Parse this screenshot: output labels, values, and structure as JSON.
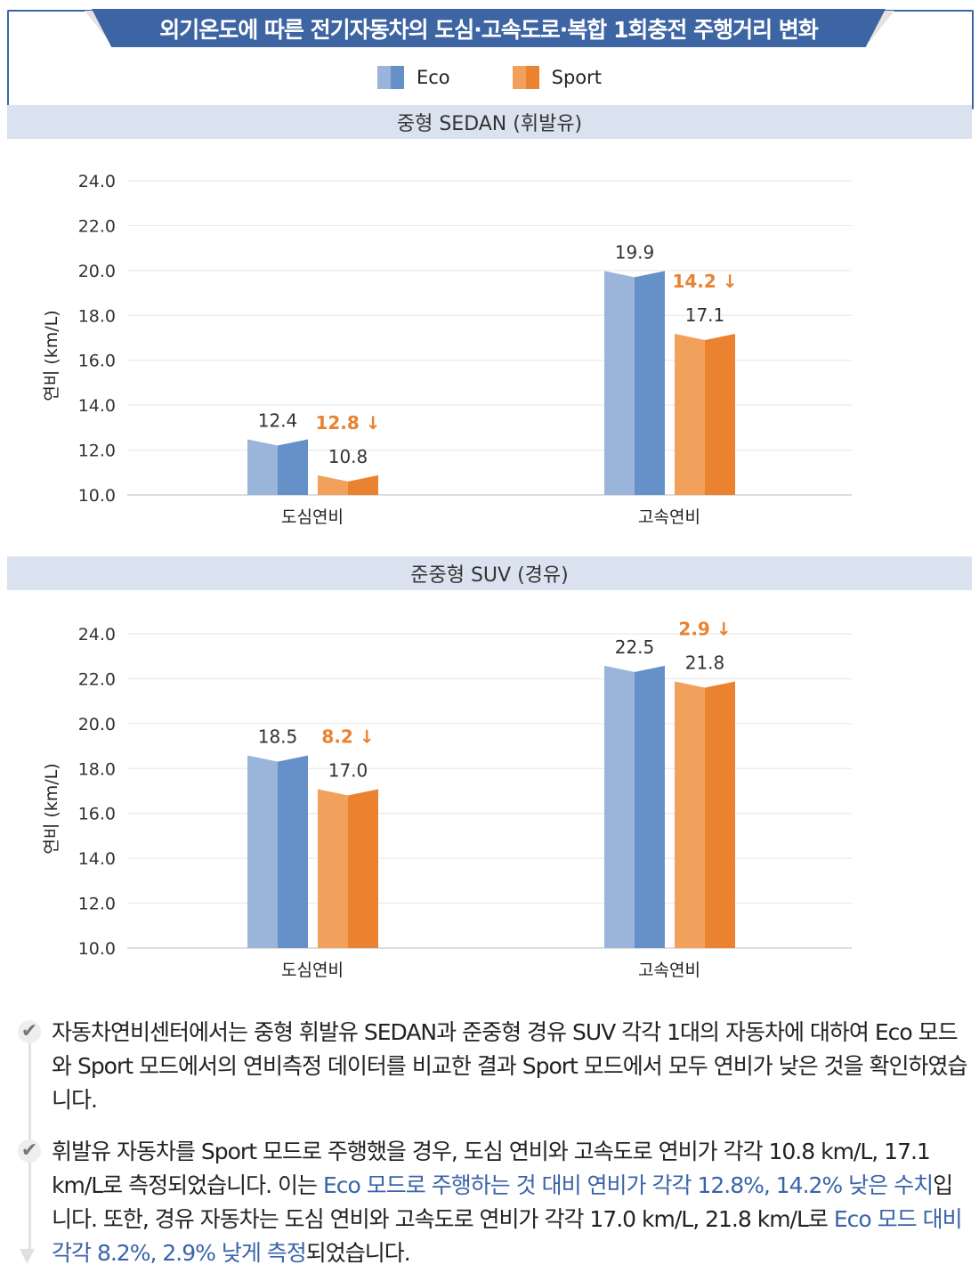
{
  "header": {
    "title": "외기온도에 따른 전기자동차의 도심·고속도로·복합 1회충전 주행거리 변화"
  },
  "legend": [
    {
      "label": "Eco",
      "colors": [
        "#9bb4da",
        "#6590c8"
      ]
    },
    {
      "label": "Sport",
      "colors": [
        "#f2a15c",
        "#ea8230"
      ]
    }
  ],
  "colors": {
    "reduction": "#ea8230",
    "highlight": "#3a63a8",
    "band": "#dae2f0",
    "banner": "#3d64a3"
  },
  "chart_data": [
    {
      "type": "bar",
      "title": "중형 SEDAN (휘발유)",
      "ylabel": "연비 (km/L)",
      "ylim": [
        10,
        24
      ],
      "yticks": [
        "10.0",
        "12.0",
        "14.0",
        "16.0",
        "18.0",
        "20.0",
        "22.0",
        "24.0"
      ],
      "grid": true,
      "categories": [
        "도심연비",
        "고속연비"
      ],
      "series": [
        {
          "name": "Eco",
          "values": [
            12.4,
            19.9
          ],
          "labels": [
            "12.4",
            "19.9"
          ]
        },
        {
          "name": "Sport",
          "values": [
            10.8,
            17.1
          ],
          "labels": [
            "10.8",
            "17.1"
          ]
        }
      ],
      "annotations": [
        "12.8 ↓",
        "14.2 ↓"
      ]
    },
    {
      "type": "bar",
      "title": "준중형 SUV (경유)",
      "ylabel": "연비 (km/L)",
      "ylim": [
        10,
        24
      ],
      "yticks": [
        "10.0",
        "12.0",
        "14.0",
        "16.0",
        "18.0",
        "20.0",
        "22.0",
        "24.0"
      ],
      "grid": true,
      "categories": [
        "도심연비",
        "고속연비"
      ],
      "series": [
        {
          "name": "Eco",
          "values": [
            18.5,
            22.5
          ],
          "labels": [
            "18.5",
            "22.5"
          ]
        },
        {
          "name": "Sport",
          "values": [
            17.0,
            21.8
          ],
          "labels": [
            "17.0",
            "21.8"
          ]
        }
      ],
      "annotations": [
        "8.2 ↓",
        "2.9 ↓"
      ]
    }
  ],
  "notes": [
    {
      "parts": [
        {
          "text": "자동차연비센터에서는 중형 휘발유 SEDAN과 준중형 경유 SUV 각각 1대의 자동차에 대하여 Eco 모드와 Sport 모드에서의 연비측정 데이터를 비교한 결과 Sport 모드에서 모두 연비가 낮은 것을 확인하였습니다."
        }
      ]
    },
    {
      "parts": [
        {
          "text": "휘발유 자동차를 Sport 모드로 주행했을 경우, 도심 연비와 고속도로 연비가 각각 10.8 km/L, 17.1 km/L로 측정되었습니다. 이는 "
        },
        {
          "text": "Eco 모드로 주행하는 것 대비 연비가 각각 12.8%, 14.2% 낮은 수치",
          "highlight": true
        },
        {
          "text": "입니다. 또한, 경유 자동차는 도심 연비와 고속도로 연비가 각각 17.0 km/L, 21.8 km/L로 "
        },
        {
          "text": "Eco 모드 대비 각각 8.2%, 2.9% 낮게 측정",
          "highlight": true
        },
        {
          "text": "되었습니다."
        }
      ]
    }
  ]
}
